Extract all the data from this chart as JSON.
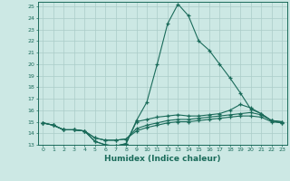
{
  "xlabel": "Humidex (Indice chaleur)",
  "bg_color": "#cce8e4",
  "line_color": "#1a6b5a",
  "grid_color": "#aaccc8",
  "xmin": 0,
  "xmax": 23,
  "ymin": 13,
  "ymax": 25,
  "line1_x": [
    0,
    1,
    2,
    3,
    4,
    5,
    6,
    7,
    8,
    9,
    10,
    11,
    12,
    13,
    14,
    15,
    16,
    17,
    18,
    19,
    20,
    21,
    22,
    23
  ],
  "line1_y": [
    14.9,
    14.7,
    14.3,
    14.3,
    14.2,
    13.3,
    13.0,
    12.9,
    13.1,
    15.1,
    16.7,
    20.0,
    23.5,
    25.2,
    24.2,
    22.0,
    21.2,
    20.0,
    18.8,
    17.5,
    16.1,
    15.7,
    15.1,
    15.0
  ],
  "line2_y": [
    14.9,
    14.7,
    14.3,
    14.3,
    14.2,
    13.3,
    13.0,
    12.9,
    13.1,
    15.0,
    15.2,
    15.4,
    15.5,
    15.6,
    15.5,
    15.5,
    15.6,
    15.7,
    16.0,
    16.5,
    16.2,
    15.7,
    15.1,
    15.0
  ],
  "line3_y": [
    14.9,
    14.7,
    14.3,
    14.3,
    14.2,
    13.6,
    13.4,
    13.4,
    13.5,
    14.4,
    14.7,
    14.9,
    15.1,
    15.2,
    15.2,
    15.3,
    15.4,
    15.5,
    15.6,
    15.7,
    15.8,
    15.6,
    15.1,
    14.9
  ],
  "line4_y": [
    14.9,
    14.7,
    14.3,
    14.3,
    14.2,
    13.6,
    13.4,
    13.4,
    13.5,
    14.2,
    14.5,
    14.7,
    14.9,
    15.0,
    15.0,
    15.1,
    15.2,
    15.3,
    15.4,
    15.5,
    15.5,
    15.4,
    15.0,
    14.9
  ]
}
